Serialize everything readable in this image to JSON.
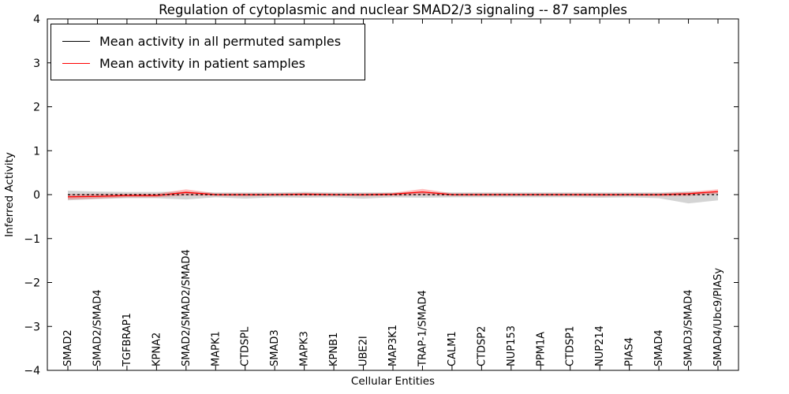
{
  "figure": {
    "title": "Regulation of cytoplasmic and nuclear SMAD2/3 signaling -- 87 samples",
    "xlabel": "Cellular Entities",
    "ylabel": "Inferred Activity"
  },
  "chart_data": {
    "type": "line",
    "title": "Regulation of cytoplasmic and nuclear SMAD2/3 signaling -- 87 samples",
    "xlabel": "Cellular Entities",
    "ylabel": "Inferred Activity",
    "ylim": [
      -4,
      4
    ],
    "yticks": [
      -4,
      -3,
      -2,
      -1,
      0,
      1,
      2,
      3,
      4
    ],
    "ytick_labels": [
      "−4",
      "−3",
      "−2",
      "−1",
      "0",
      "1",
      "2",
      "3",
      "4"
    ],
    "grid": false,
    "legend_position": "upper left",
    "categories": [
      "SMAD2",
      "SMAD2/SMAD4",
      "TGFBRAP1",
      "KPNA2",
      "SMAD2/SMAD2/SMAD4",
      "MAPK1",
      "CTDSPL",
      "SMAD3",
      "MAPK3",
      "KPNB1",
      "UBE2I",
      "MAP3K1",
      "TRAP-1/SMAD4",
      "CALM1",
      "CTDSP2",
      "NUP153",
      "PPM1A",
      "CTDSP1",
      "NUP214",
      "PIAS4",
      "SMAD4",
      "SMAD3/SMAD4",
      "SMAD4/Ubc9/PIASy"
    ],
    "series": [
      {
        "name": "Mean activity in all permuted samples",
        "color": "#000000",
        "style": "dashed",
        "values": [
          0,
          0,
          0,
          0,
          0,
          0,
          0,
          0,
          0,
          0,
          0,
          0,
          0,
          0,
          0,
          0,
          0,
          0,
          0,
          0,
          0,
          0,
          0
        ]
      },
      {
        "name": "Mean activity in patient samples",
        "color": "#ff0000",
        "style": "solid",
        "values": [
          -0.05,
          -0.04,
          -0.02,
          -0.02,
          0.05,
          0,
          0,
          0,
          0.01,
          0,
          0,
          0.01,
          0.06,
          0,
          0,
          0,
          0,
          0,
          0,
          0,
          0,
          0.02,
          0.07
        ]
      }
    ],
    "bands": [
      {
        "name": "permuted-range",
        "color": "#b0b0b0",
        "opacity": 0.55,
        "upper": [
          0.09,
          0.07,
          0.06,
          0.06,
          0.07,
          0.05,
          0.05,
          0.05,
          0.06,
          0.05,
          0.05,
          0.05,
          0.06,
          0.05,
          0.05,
          0.05,
          0.05,
          0.05,
          0.05,
          0.05,
          0.05,
          0.07,
          0.06
        ],
        "lower": [
          -0.13,
          -0.1,
          -0.08,
          -0.08,
          -0.11,
          -0.06,
          -0.09,
          -0.06,
          -0.07,
          -0.06,
          -0.09,
          -0.06,
          -0.07,
          -0.06,
          -0.06,
          -0.06,
          -0.06,
          -0.06,
          -0.07,
          -0.06,
          -0.08,
          -0.2,
          -0.13
        ]
      },
      {
        "name": "patient-range",
        "color": "#ff2a2a",
        "opacity": 0.3,
        "upper": [
          0.01,
          0.02,
          0.02,
          0.02,
          0.12,
          0.03,
          0.03,
          0.03,
          0.04,
          0.03,
          0.03,
          0.04,
          0.13,
          0.03,
          0.03,
          0.03,
          0.03,
          0.03,
          0.03,
          0.03,
          0.03,
          0.06,
          0.12
        ],
        "lower": [
          -0.11,
          -0.09,
          -0.06,
          -0.06,
          -0.02,
          -0.03,
          -0.04,
          -0.03,
          -0.03,
          -0.03,
          -0.04,
          -0.03,
          -0.01,
          -0.03,
          -0.03,
          -0.03,
          -0.03,
          -0.03,
          -0.04,
          -0.03,
          -0.04,
          -0.03,
          0.02
        ]
      }
    ]
  }
}
